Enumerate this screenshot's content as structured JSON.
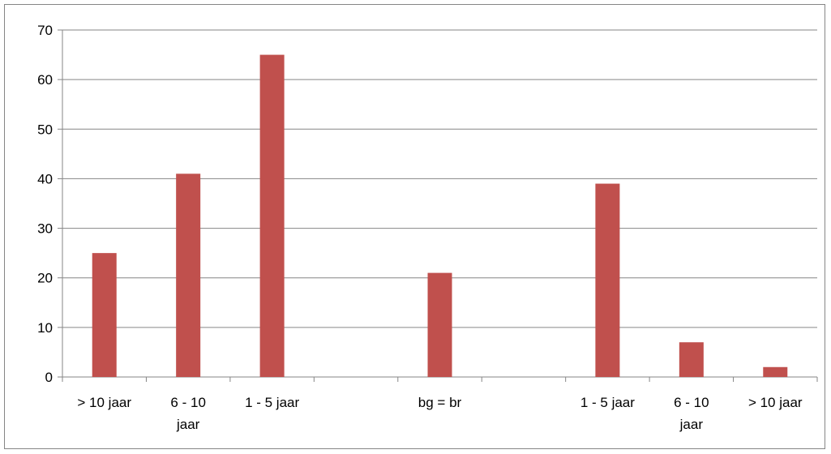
{
  "chart_data": {
    "type": "bar",
    "categories": [
      [
        "> 10 jaar"
      ],
      [
        "6 - 10",
        "jaar"
      ],
      [
        "1 - 5 jaar"
      ],
      [
        ""
      ],
      [
        "bg = br"
      ],
      [
        ""
      ],
      [
        "1 - 5 jaar"
      ],
      [
        "6 - 10",
        "jaar"
      ],
      [
        "> 10 jaar"
      ]
    ],
    "series": [
      {
        "values": [
          25,
          41,
          65,
          null,
          21,
          null,
          39,
          7,
          2
        ]
      }
    ],
    "ylim": [
      0,
      70
    ],
    "yticks": [
      0,
      10,
      20,
      30,
      40,
      50,
      60,
      70
    ],
    "grid": true,
    "legend": "none",
    "colors": {
      "bar": "#c0504d",
      "grid": "#868686",
      "axis": "#868686"
    }
  }
}
